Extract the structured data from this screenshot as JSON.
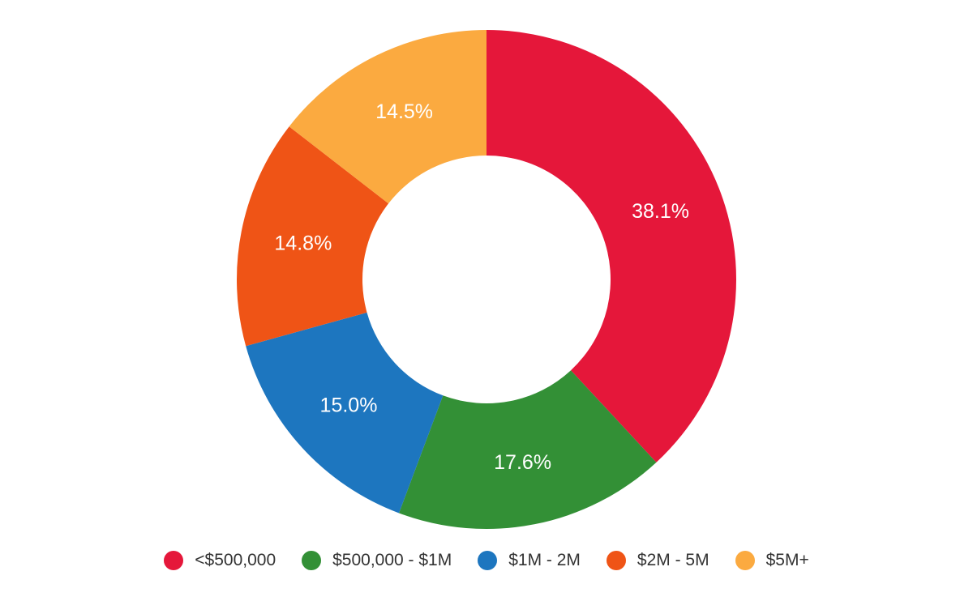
{
  "chart_data": {
    "type": "pie",
    "variant": "donut",
    "categories": [
      "<$500,000",
      "$500,000 - $1M",
      "$1M - 2M",
      "$2M - 5M",
      "$5M+"
    ],
    "values": [
      38.1,
      17.6,
      15.0,
      14.8,
      14.5
    ],
    "value_labels": [
      "38.1%",
      "17.6%",
      "15.0%",
      "14.8%",
      "14.5%"
    ],
    "colors": [
      "#e5173a",
      "#339036",
      "#1d76bf",
      "#ef5416",
      "#fbaa40"
    ],
    "legend_position": "bottom",
    "start_angle": "12 o'clock",
    "direction": "clockwise"
  }
}
